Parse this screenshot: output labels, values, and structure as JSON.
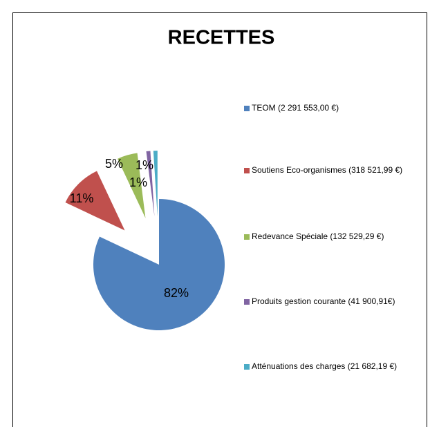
{
  "chart_data": {
    "type": "pie",
    "title": "RECETTES",
    "categories": [
      "TEOM (2 291 553,00 €)",
      "Soutiens Eco-organismes (318 521,99 €)",
      "Redevance Spéciale (132 529,29 €)",
      "Produits gestion courante (41 900,91€)",
      "Atténuations des charges (21 682,19 €)"
    ],
    "values": [
      82,
      11,
      5,
      1,
      1
    ],
    "value_labels": [
      "82%",
      "11%",
      "5%",
      "1%",
      "1%"
    ],
    "colors": [
      "#4f81bd",
      "#c0504d",
      "#9bbb59",
      "#8064a2",
      "#4bacc6"
    ]
  }
}
